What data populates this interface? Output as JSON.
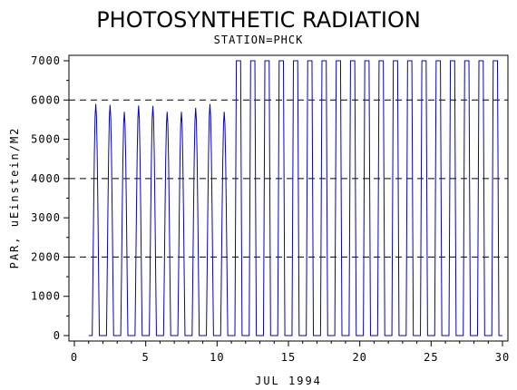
{
  "chart_data": {
    "type": "line",
    "title": "PHOTOSYNTHETIC RADIATION",
    "subtitle": "STATION=PHCK",
    "xlabel": "JUL 1994",
    "ylabel": "PAR, uEinstein/M2",
    "xlim": [
      0,
      30
    ],
    "ylim": [
      0,
      7000
    ],
    "x_ticks": [
      0,
      5,
      10,
      15,
      20,
      25,
      30
    ],
    "y_ticks": [
      0,
      1000,
      2000,
      3000,
      4000,
      5000,
      6000,
      7000
    ],
    "reference_lines": [
      2000,
      4000,
      6000
    ],
    "grid": false,
    "line_color": "#0000cc",
    "sampling_interval_days": 0.05,
    "days": [
      {
        "day": 1,
        "peak": 5900
      },
      {
        "day": 2,
        "peak": 5880
      },
      {
        "day": 3,
        "peak": 5700
      },
      {
        "day": 4,
        "peak": 5860
      },
      {
        "day": 5,
        "peak": 5850
      },
      {
        "day": 6,
        "peak": 5700
      },
      {
        "day": 7,
        "peak": 5700
      },
      {
        "day": 8,
        "peak": 5800
      },
      {
        "day": 9,
        "peak": 5900
      },
      {
        "day": 10,
        "peak": 5700
      },
      {
        "day": 11,
        "peak": 7000
      },
      {
        "day": 12,
        "peak": 7000
      },
      {
        "day": 13,
        "peak": 7000
      },
      {
        "day": 14,
        "peak": 7000
      },
      {
        "day": 15,
        "peak": 7000
      },
      {
        "day": 16,
        "peak": 7000
      },
      {
        "day": 17,
        "peak": 7000
      },
      {
        "day": 18,
        "peak": 7000
      },
      {
        "day": 19,
        "peak": 7000
      },
      {
        "day": 20,
        "peak": 7000
      },
      {
        "day": 21,
        "peak": 7000
      },
      {
        "day": 22,
        "peak": 7000
      },
      {
        "day": 23,
        "peak": 7000
      },
      {
        "day": 24,
        "peak": 7000
      },
      {
        "day": 25,
        "peak": 7000
      },
      {
        "day": 26,
        "peak": 7000
      },
      {
        "day": 27,
        "peak": 7000
      },
      {
        "day": 28,
        "peak": 7000
      },
      {
        "day": 29,
        "peak": 7000
      }
    ]
  }
}
